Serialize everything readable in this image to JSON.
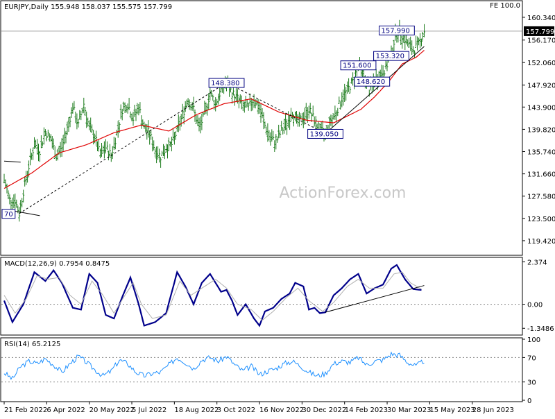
{
  "header": {
    "symbol_line": "EURJPY,Daily  155.948 158.037 155.575 157.799",
    "fe_label": "FE 100.0",
    "watermark": "ActionForex.com"
  },
  "chart_data": [
    {
      "type": "candlestick",
      "name": "price",
      "ylim": [
        117.0,
        163.0
      ],
      "yticks": [
        "160.340",
        "156.170",
        "152.060",
        "147.920",
        "143.900",
        "139.820",
        "135.740",
        "131.660",
        "127.580",
        "123.500",
        "119.420"
      ],
      "ytick_values": [
        160.34,
        156.17,
        152.06,
        147.92,
        143.9,
        139.82,
        135.74,
        131.66,
        127.58,
        123.5,
        119.42
      ],
      "last_price": "157.799",
      "last_price_value": 157.799,
      "close_path": [
        [
          0,
          130.5
        ],
        [
          4,
          127.0
        ],
        [
          8,
          126.8
        ],
        [
          11,
          124.4
        ],
        [
          14,
          128.5
        ],
        [
          18,
          133.0
        ],
        [
          22,
          137.0
        ],
        [
          26,
          136.0
        ],
        [
          30,
          139.4
        ],
        [
          34,
          138.0
        ],
        [
          38,
          135.0
        ],
        [
          42,
          136.5
        ],
        [
          46,
          140.0
        ],
        [
          50,
          144.0
        ],
        [
          54,
          140.5
        ],
        [
          58,
          144.5
        ],
        [
          62,
          140.0
        ],
        [
          66,
          138.5
        ],
        [
          70,
          135.0
        ],
        [
          74,
          136.5
        ],
        [
          78,
          135.0
        ],
        [
          82,
          139.0
        ],
        [
          86,
          143.5
        ],
        [
          90,
          144.5
        ],
        [
          94,
          141.8
        ],
        [
          98,
          144.0
        ],
        [
          102,
          140.0
        ],
        [
          106,
          139.0
        ],
        [
          110,
          136.0
        ],
        [
          114,
          134.8
        ],
        [
          118,
          136.5
        ],
        [
          122,
          137.0
        ],
        [
          126,
          139.5
        ],
        [
          130,
          142.5
        ],
        [
          134,
          145.5
        ],
        [
          138,
          143.5
        ],
        [
          142,
          140.0
        ],
        [
          146,
          142.5
        ],
        [
          150,
          146.5
        ],
        [
          154,
          144.5
        ],
        [
          158,
          147.0
        ],
        [
          162,
          148.3
        ],
        [
          166,
          146.5
        ],
        [
          170,
          145.5
        ],
        [
          174,
          144.0
        ],
        [
          178,
          143.8
        ],
        [
          182,
          145.5
        ],
        [
          186,
          143.5
        ],
        [
          190,
          140.5
        ],
        [
          194,
          138.0
        ],
        [
          198,
          137.5
        ],
        [
          202,
          139.5
        ],
        [
          206,
          141.0
        ],
        [
          210,
          143.0
        ],
        [
          214,
          141.0
        ],
        [
          218,
          142.0
        ],
        [
          222,
          143.5
        ],
        [
          226,
          141.5
        ],
        [
          230,
          139.5
        ],
        [
          234,
          139.1
        ],
        [
          238,
          141.5
        ],
        [
          242,
          143.0
        ],
        [
          246,
          145.5
        ],
        [
          250,
          147.0
        ],
        [
          254,
          148.5
        ],
        [
          258,
          151.6
        ],
        [
          262,
          149.5
        ],
        [
          266,
          147.0
        ],
        [
          270,
          148.7
        ],
        [
          274,
          150.0
        ],
        [
          278,
          151.0
        ],
        [
          282,
          153.8
        ],
        [
          286,
          157.99
        ],
        [
          290,
          157.0
        ],
        [
          294,
          155.5
        ],
        [
          298,
          154.3
        ],
        [
          302,
          155.5
        ],
        [
          306,
          157.8
        ]
      ],
      "ema": [
        [
          0,
          129.0
        ],
        [
          20,
          131.8
        ],
        [
          40,
          135.5
        ],
        [
          60,
          137.0
        ],
        [
          80,
          139.2
        ],
        [
          100,
          140.6
        ],
        [
          120,
          139.5
        ],
        [
          140,
          142.5
        ],
        [
          160,
          144.5
        ],
        [
          180,
          145.4
        ],
        [
          200,
          143.0
        ],
        [
          220,
          141.5
        ],
        [
          240,
          141.0
        ],
        [
          260,
          143.5
        ],
        [
          270,
          145.8
        ],
        [
          280,
          148.5
        ],
        [
          290,
          151.8
        ],
        [
          300,
          153.0
        ],
        [
          306,
          154.3
        ]
      ],
      "annotations": [
        {
          "label": "148.380",
          "value": 148.38,
          "at": 162
        },
        {
          "label": "151.600",
          "value": 151.6,
          "at": 258
        },
        {
          "label": "157.990",
          "value": 157.99,
          "at": 286
        },
        {
          "label": "153.320",
          "value": 153.32,
          "at": 282
        },
        {
          "label": "148.620",
          "value": 148.62,
          "at": 268
        },
        {
          "label": "139.050",
          "value": 139.05,
          "at": 234
        },
        {
          "label": "70",
          "value": 124.4,
          "at": 0
        }
      ],
      "trend_lines": [
        {
          "style": "dashed",
          "from": [
            11,
            124.4
          ],
          "to": [
            162,
            148.38
          ]
        },
        {
          "style": "dashed",
          "from": [
            162,
            148.38
          ],
          "to": [
            234,
            139.05
          ]
        },
        {
          "style": "solid",
          "from": [
            234,
            139.05
          ],
          "to": [
            306,
            155.0
          ]
        },
        {
          "style": "solid",
          "from": [
            258,
            151.6
          ],
          "to": [
            268,
            151.0
          ]
        },
        {
          "style": "solid",
          "from": [
            0,
            134.0
          ],
          "to": [
            12,
            133.8
          ]
        },
        {
          "style": "solid",
          "from": [
            4,
            125.0
          ],
          "to": [
            26,
            124.0
          ]
        }
      ],
      "hline": 157.799
    },
    {
      "type": "line",
      "name": "macd",
      "title": "MACD(12,26,9) 0.7954 0.8475",
      "ylim": [
        -1.65,
        2.55
      ],
      "yticks": [
        "2.374",
        "0.00",
        "-1.3486"
      ],
      "ytick_values": [
        2.374,
        0.0,
        -1.3486
      ],
      "series": [
        {
          "role": "macd",
          "points": [
            [
              0,
              0.2
            ],
            [
              6,
              -1.0
            ],
            [
              14,
              0.0
            ],
            [
              22,
              1.8
            ],
            [
              30,
              1.3
            ],
            [
              36,
              1.9
            ],
            [
              42,
              1.2
            ],
            [
              50,
              -0.2
            ],
            [
              56,
              -0.3
            ],
            [
              62,
              1.7
            ],
            [
              68,
              1.2
            ],
            [
              74,
              -0.6
            ],
            [
              80,
              -0.8
            ],
            [
              86,
              0.4
            ],
            [
              92,
              1.5
            ],
            [
              98,
              0.0
            ],
            [
              102,
              -1.2
            ],
            [
              110,
              -1.0
            ],
            [
              118,
              -0.5
            ],
            [
              126,
              1.8
            ],
            [
              132,
              1.0
            ],
            [
              138,
              0.0
            ],
            [
              144,
              1.2
            ],
            [
              150,
              1.7
            ],
            [
              158,
              0.7
            ],
            [
              162,
              0.8
            ],
            [
              166,
              0.2
            ],
            [
              170,
              -0.6
            ],
            [
              176,
              0.0
            ],
            [
              182,
              -0.8
            ],
            [
              186,
              -1.2
            ],
            [
              190,
              -0.4
            ],
            [
              196,
              -0.2
            ],
            [
              202,
              0.3
            ],
            [
              208,
              0.6
            ],
            [
              212,
              1.2
            ],
            [
              218,
              1.0
            ],
            [
              222,
              -0.3
            ],
            [
              226,
              -0.2
            ],
            [
              230,
              -0.5
            ],
            [
              234,
              -0.45
            ],
            [
              240,
              0.5
            ],
            [
              246,
              0.9
            ],
            [
              252,
              1.4
            ],
            [
              258,
              1.7
            ],
            [
              264,
              0.6
            ],
            [
              270,
              0.9
            ],
            [
              276,
              1.1
            ],
            [
              282,
              2.0
            ],
            [
              286,
              2.2
            ],
            [
              292,
              1.4
            ],
            [
              298,
              0.85
            ],
            [
              304,
              0.8
            ]
          ]
        },
        {
          "role": "signal",
          "points": [
            [
              0,
              0.5
            ],
            [
              8,
              -0.5
            ],
            [
              16,
              0.3
            ],
            [
              24,
              1.6
            ],
            [
              32,
              1.4
            ],
            [
              40,
              1.5
            ],
            [
              48,
              0.5
            ],
            [
              56,
              0.0
            ],
            [
              64,
              1.3
            ],
            [
              72,
              0.5
            ],
            [
              80,
              -0.5
            ],
            [
              88,
              0.5
            ],
            [
              94,
              1.2
            ],
            [
              100,
              0.0
            ],
            [
              108,
              -0.8
            ],
            [
              118,
              -0.6
            ],
            [
              128,
              1.3
            ],
            [
              136,
              0.5
            ],
            [
              146,
              1.0
            ],
            [
              154,
              1.4
            ],
            [
              162,
              0.9
            ],
            [
              170,
              0.0
            ],
            [
              180,
              -0.3
            ],
            [
              188,
              -0.9
            ],
            [
              196,
              -0.4
            ],
            [
              206,
              0.4
            ],
            [
              214,
              0.9
            ],
            [
              222,
              0.2
            ],
            [
              232,
              -0.4
            ],
            [
              240,
              0.1
            ],
            [
              250,
              1.0
            ],
            [
              258,
              1.4
            ],
            [
              266,
              0.9
            ],
            [
              276,
              0.9
            ],
            [
              284,
              1.7
            ],
            [
              290,
              1.8
            ],
            [
              296,
              1.2
            ],
            [
              304,
              0.85
            ]
          ]
        }
      ],
      "zero_line": 0.0,
      "trend_lines": [
        {
          "style": "solid",
          "from": [
            234,
            -0.45
          ],
          "to": [
            306,
            1.05
          ]
        }
      ]
    },
    {
      "type": "line",
      "name": "rsi",
      "title": "RSI(14) 65.2125",
      "ylim": [
        0,
        100
      ],
      "yticks": [
        "100",
        "70",
        "30",
        "0"
      ],
      "ytick_values": [
        100,
        70,
        30,
        0
      ],
      "levels": [
        70,
        30
      ],
      "series": [
        {
          "role": "rsi",
          "points": [
            [
              0,
              45
            ],
            [
              6,
              35
            ],
            [
              12,
              55
            ],
            [
              18,
              64
            ],
            [
              24,
              60
            ],
            [
              30,
              68
            ],
            [
              36,
              58
            ],
            [
              42,
              46
            ],
            [
              48,
              60
            ],
            [
              54,
              72
            ],
            [
              60,
              62
            ],
            [
              66,
              50
            ],
            [
              72,
              40
            ],
            [
              78,
              48
            ],
            [
              84,
              66
            ],
            [
              90,
              60
            ],
            [
              96,
              46
            ],
            [
              102,
              40
            ],
            [
              108,
              44
            ],
            [
              114,
              46
            ],
            [
              120,
              58
            ],
            [
              126,
              70
            ],
            [
              132,
              62
            ],
            [
              138,
              52
            ],
            [
              144,
              66
            ],
            [
              150,
              70
            ],
            [
              156,
              64
            ],
            [
              162,
              72
            ],
            [
              168,
              58
            ],
            [
              174,
              48
            ],
            [
              180,
              56
            ],
            [
              186,
              42
            ],
            [
              192,
              48
            ],
            [
              198,
              52
            ],
            [
              204,
              60
            ],
            [
              210,
              64
            ],
            [
              216,
              56
            ],
            [
              222,
              46
            ],
            [
              228,
              40
            ],
            [
              234,
              44
            ],
            [
              240,
              60
            ],
            [
              246,
              64
            ],
            [
              252,
              62
            ],
            [
              258,
              70
            ],
            [
              264,
              58
            ],
            [
              270,
              64
            ],
            [
              276,
              66
            ],
            [
              282,
              76
            ],
            [
              288,
              74
            ],
            [
              294,
              62
            ],
            [
              300,
              56
            ],
            [
              306,
              65
            ]
          ]
        }
      ]
    }
  ],
  "x_axis": {
    "ticks": [
      "21 Feb 2022",
      "6 Apr 2022",
      "20 May 2022",
      "5 Jul 2022",
      "18 Aug 2022",
      "3 Oct 2022",
      "16 Nov 2022",
      "30 Dec 2022",
      "14 Feb 2023",
      "30 Mar 2023",
      "15 May 2023",
      "28 Jun 2023"
    ],
    "tick_positions": [
      0,
      31,
      62,
      93,
      124,
      155,
      186,
      217,
      248,
      279,
      310,
      341
    ]
  }
}
